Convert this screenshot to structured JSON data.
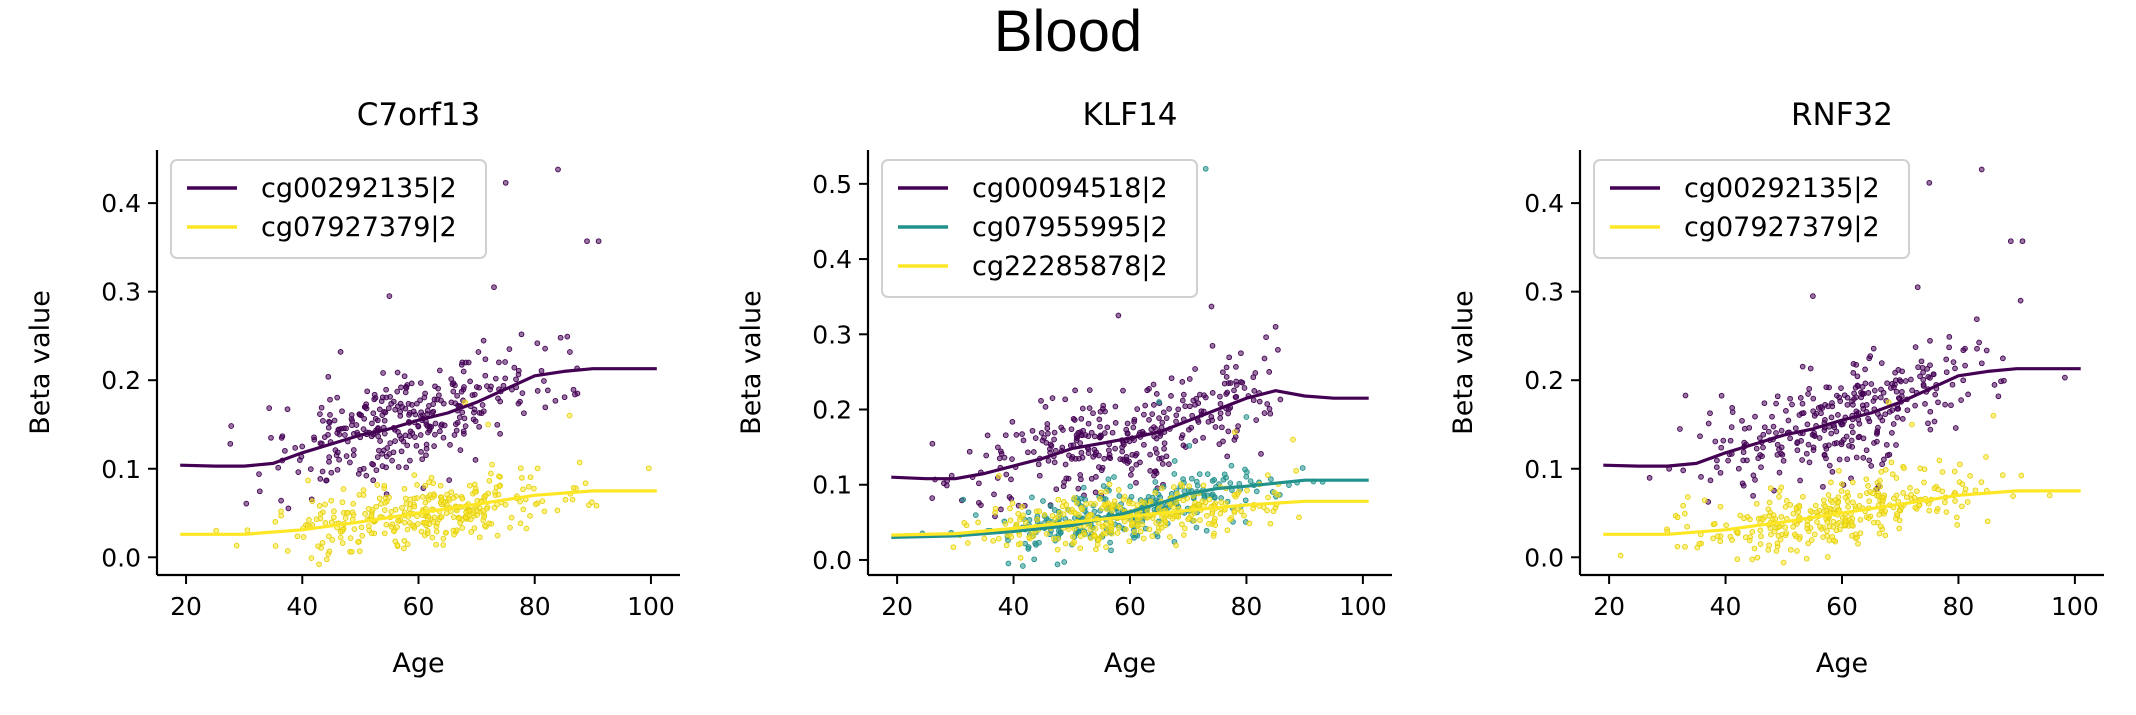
{
  "figure_title": "Blood",
  "colors": {
    "viridis_dark": "#440154",
    "viridis_teal": "#21918c",
    "viridis_yellow": "#fde725"
  },
  "chart_data": [
    {
      "type": "scatter",
      "title": "C7orf13",
      "xlabel": "Age",
      "ylabel": "Beta value",
      "xlim": [
        15,
        105
      ],
      "ylim": [
        -0.02,
        0.46
      ],
      "xticks": [
        20,
        40,
        60,
        80,
        100
      ],
      "yticks": [
        0.0,
        0.1,
        0.2,
        0.3,
        0.4
      ],
      "legend_position": "upper-left",
      "series": [
        {
          "name": "cg00292135|2",
          "color": "#440154",
          "trend_x": [
            19,
            25,
            30,
            35,
            40,
            45,
            50,
            55,
            60,
            65,
            70,
            75,
            80,
            85,
            90,
            95,
            101
          ],
          "trend_y": [
            0.104,
            0.103,
            0.103,
            0.106,
            0.118,
            0.128,
            0.138,
            0.145,
            0.155,
            0.163,
            0.175,
            0.19,
            0.205,
            0.21,
            0.213,
            0.213,
            0.213
          ],
          "scatter_spread": 0.05,
          "scatter_n": 330,
          "scatter_x_range": [
            19,
            101
          ],
          "outliers": [
            [
              84,
              0.438
            ],
            [
              91,
              0.357
            ],
            [
              89,
              0.357
            ],
            [
              75,
              0.423
            ],
            [
              55,
              0.295
            ],
            [
              73,
              0.305
            ]
          ]
        },
        {
          "name": "cg07927379|2",
          "color": "#fde725",
          "trend_x": [
            19,
            30,
            40,
            50,
            60,
            70,
            80,
            90,
            101
          ],
          "trend_y": [
            0.026,
            0.026,
            0.031,
            0.04,
            0.05,
            0.06,
            0.07,
            0.075,
            0.075
          ],
          "scatter_spread": 0.03,
          "scatter_n": 330,
          "scatter_x_range": [
            19,
            101
          ],
          "outliers": [
            [
              68,
              0.175
            ],
            [
              86,
              0.16
            ],
            [
              72,
              0.15
            ]
          ]
        }
      ]
    },
    {
      "type": "scatter",
      "title": "KLF14",
      "xlabel": "Age",
      "ylabel": "Beta value",
      "xlim": [
        15,
        105
      ],
      "ylim": [
        -0.02,
        0.545
      ],
      "xticks": [
        20,
        40,
        60,
        80,
        100
      ],
      "yticks": [
        0.0,
        0.1,
        0.2,
        0.3,
        0.4,
        0.5
      ],
      "legend_position": "upper-left",
      "series": [
        {
          "name": "cg00094518|2",
          "color": "#440154",
          "trend_x": [
            19,
            25,
            30,
            35,
            40,
            45,
            50,
            55,
            60,
            65,
            70,
            75,
            80,
            85,
            90,
            95,
            101
          ],
          "trend_y": [
            0.11,
            0.108,
            0.108,
            0.115,
            0.125,
            0.135,
            0.148,
            0.155,
            0.162,
            0.17,
            0.185,
            0.2,
            0.215,
            0.225,
            0.218,
            0.215,
            0.215
          ],
          "scatter_spread": 0.055,
          "scatter_n": 330,
          "scatter_x_range": [
            19,
            101
          ],
          "outliers": [
            [
              74,
              0.337
            ],
            [
              58,
              0.325
            ],
            [
              85,
              0.31
            ]
          ]
        },
        {
          "name": "cg07955995|2",
          "color": "#21918c",
          "trend_x": [
            19,
            30,
            40,
            50,
            55,
            60,
            65,
            70,
            75,
            80,
            85,
            90,
            101
          ],
          "trend_y": [
            0.03,
            0.032,
            0.038,
            0.046,
            0.054,
            0.064,
            0.075,
            0.088,
            0.095,
            0.098,
            0.102,
            0.106,
            0.106
          ],
          "scatter_spread": 0.03,
          "scatter_n": 300,
          "scatter_x_range": [
            19,
            101
          ],
          "outliers": [
            [
              73,
              0.52
            ],
            [
              65,
              0.21
            ],
            [
              80,
              0.19
            ]
          ]
        },
        {
          "name": "cg22285878|2",
          "color": "#fde725",
          "trend_x": [
            19,
            30,
            40,
            50,
            60,
            70,
            80,
            90,
            101
          ],
          "trend_y": [
            0.033,
            0.035,
            0.042,
            0.05,
            0.058,
            0.066,
            0.073,
            0.078,
            0.078
          ],
          "scatter_spread": 0.03,
          "scatter_n": 330,
          "scatter_x_range": [
            19,
            101
          ],
          "outliers": [
            [
              78,
              0.17
            ],
            [
              88,
              0.16
            ]
          ]
        }
      ]
    },
    {
      "type": "scatter",
      "title": "RNF32",
      "xlabel": "Age",
      "ylabel": "Beta value",
      "xlim": [
        15,
        105
      ],
      "ylim": [
        -0.02,
        0.46
      ],
      "xticks": [
        20,
        40,
        60,
        80,
        100
      ],
      "yticks": [
        0.0,
        0.1,
        0.2,
        0.3,
        0.4
      ],
      "legend_position": "upper-left",
      "series": [
        {
          "name": "cg00292135|2",
          "color": "#440154",
          "trend_x": [
            19,
            25,
            30,
            35,
            40,
            45,
            50,
            55,
            60,
            65,
            70,
            75,
            80,
            85,
            90,
            95,
            101
          ],
          "trend_y": [
            0.104,
            0.103,
            0.103,
            0.106,
            0.118,
            0.128,
            0.138,
            0.145,
            0.155,
            0.163,
            0.175,
            0.19,
            0.205,
            0.21,
            0.213,
            0.213,
            0.213
          ],
          "scatter_spread": 0.05,
          "scatter_n": 330,
          "scatter_x_range": [
            19,
            101
          ],
          "outliers": [
            [
              84,
              0.438
            ],
            [
              91,
              0.357
            ],
            [
              89,
              0.357
            ],
            [
              75,
              0.423
            ],
            [
              55,
              0.295
            ],
            [
              73,
              0.305
            ]
          ]
        },
        {
          "name": "cg07927379|2",
          "color": "#fde725",
          "trend_x": [
            19,
            30,
            40,
            50,
            60,
            70,
            80,
            90,
            101
          ],
          "trend_y": [
            0.026,
            0.026,
            0.031,
            0.04,
            0.05,
            0.06,
            0.07,
            0.075,
            0.075
          ],
          "scatter_spread": 0.03,
          "scatter_n": 330,
          "scatter_x_range": [
            19,
            101
          ],
          "outliers": [
            [
              68,
              0.175
            ],
            [
              86,
              0.16
            ],
            [
              72,
              0.15
            ]
          ]
        }
      ]
    }
  ]
}
